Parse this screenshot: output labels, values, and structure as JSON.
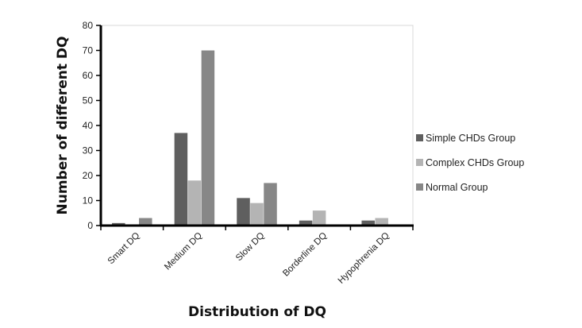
{
  "chart_data": {
    "type": "bar",
    "title": "",
    "xlabel": "Distribution of DQ",
    "ylabel": "Number of different DQ",
    "categories": [
      "Smart DQ",
      "Medium DQ",
      "Slow DQ",
      "Borderline DQ",
      "Hypophrenia DQ"
    ],
    "series": [
      {
        "name": "Simple CHDs Group",
        "color": "#5f5f5f",
        "values": [
          1,
          37,
          11,
          2,
          2
        ]
      },
      {
        "name": "Complex CHDs Group",
        "color": "#b4b4b4",
        "values": [
          0,
          18,
          9,
          6,
          3
        ]
      },
      {
        "name": "Normal Group",
        "color": "#878787",
        "values": [
          3,
          70,
          17,
          0,
          0
        ]
      }
    ],
    "ylim": [
      0,
      80
    ],
    "yticks": [
      0,
      10,
      20,
      30,
      40,
      50,
      60,
      70,
      80
    ],
    "grid": false,
    "legend_position": "right"
  }
}
